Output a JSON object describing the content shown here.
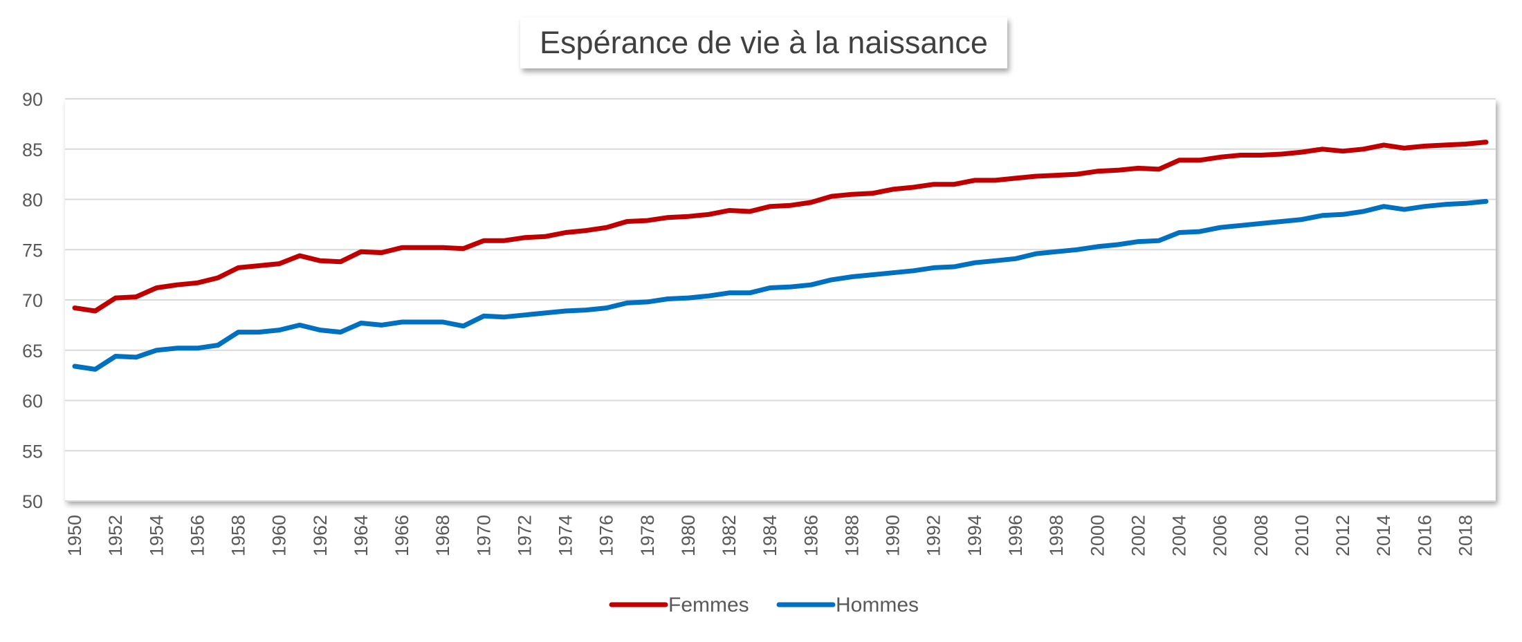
{
  "chart_data": {
    "type": "line",
    "title": "Espérance de vie à la naissance",
    "xlabel": "",
    "ylabel": "",
    "ylim": [
      50,
      90
    ],
    "yticks": [
      50,
      55,
      60,
      65,
      70,
      75,
      80,
      85,
      90
    ],
    "grid": true,
    "legend_position": "bottom",
    "x": [
      1950,
      1951,
      1952,
      1953,
      1954,
      1955,
      1956,
      1957,
      1958,
      1959,
      1960,
      1961,
      1962,
      1963,
      1964,
      1965,
      1966,
      1967,
      1968,
      1969,
      1970,
      1971,
      1972,
      1973,
      1974,
      1975,
      1976,
      1977,
      1978,
      1979,
      1980,
      1981,
      1982,
      1983,
      1984,
      1985,
      1986,
      1987,
      1988,
      1989,
      1990,
      1991,
      1992,
      1993,
      1994,
      1995,
      1996,
      1997,
      1998,
      1999,
      2000,
      2001,
      2002,
      2003,
      2004,
      2005,
      2006,
      2007,
      2008,
      2009,
      2010,
      2011,
      2012,
      2013,
      2014,
      2015,
      2016,
      2017,
      2018,
      2019
    ],
    "x_tick_labels": [
      "1950",
      "1952",
      "1954",
      "1956",
      "1958",
      "1960",
      "1962",
      "1964",
      "1966",
      "1968",
      "1970",
      "1972",
      "1974",
      "1976",
      "1978",
      "1980",
      "1982",
      "1984",
      "1986",
      "1988",
      "1990",
      "1992",
      "1994",
      "1996",
      "1998",
      "2000",
      "2002",
      "2004",
      "2006",
      "2008",
      "2010",
      "2012",
      "2014",
      "2016",
      "2018"
    ],
    "series": [
      {
        "name": "Femmes",
        "color": "#c00000",
        "values": [
          69.2,
          68.9,
          70.2,
          70.3,
          71.2,
          71.5,
          71.7,
          72.2,
          73.2,
          73.4,
          73.6,
          74.4,
          73.9,
          73.8,
          74.8,
          74.7,
          75.2,
          75.2,
          75.2,
          75.1,
          75.9,
          75.9,
          76.2,
          76.3,
          76.7,
          76.9,
          77.2,
          77.8,
          77.9,
          78.2,
          78.3,
          78.5,
          78.9,
          78.8,
          79.3,
          79.4,
          79.7,
          80.3,
          80.5,
          80.6,
          81.0,
          81.2,
          81.5,
          81.5,
          81.9,
          81.9,
          82.1,
          82.3,
          82.4,
          82.5,
          82.8,
          82.9,
          83.1,
          83.0,
          83.9,
          83.9,
          84.2,
          84.4,
          84.4,
          84.5,
          84.7,
          85.0,
          84.8,
          85.0,
          85.4,
          85.1,
          85.3,
          85.4,
          85.5,
          85.7
        ]
      },
      {
        "name": "Hommes",
        "color": "#0070c0",
        "values": [
          63.4,
          63.1,
          64.4,
          64.3,
          65.0,
          65.2,
          65.2,
          65.5,
          66.8,
          66.8,
          67.0,
          67.5,
          67.0,
          66.8,
          67.7,
          67.5,
          67.8,
          67.8,
          67.8,
          67.4,
          68.4,
          68.3,
          68.5,
          68.7,
          68.9,
          69.0,
          69.2,
          69.7,
          69.8,
          70.1,
          70.2,
          70.4,
          70.7,
          70.7,
          71.2,
          71.3,
          71.5,
          72.0,
          72.3,
          72.5,
          72.7,
          72.9,
          73.2,
          73.3,
          73.7,
          73.9,
          74.1,
          74.6,
          74.8,
          75.0,
          75.3,
          75.5,
          75.8,
          75.9,
          76.7,
          76.8,
          77.2,
          77.4,
          77.6,
          77.8,
          78.0,
          78.4,
          78.5,
          78.8,
          79.3,
          79.0,
          79.3,
          79.5,
          79.6,
          79.8
        ]
      }
    ]
  }
}
